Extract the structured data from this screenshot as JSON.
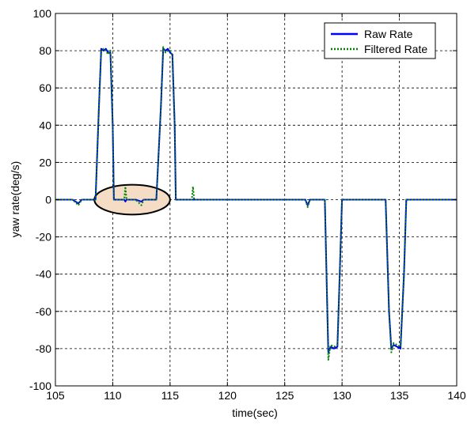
{
  "chart_data": {
    "type": "line",
    "title": "",
    "xlabel": "time(sec)",
    "ylabel": "yaw rate(deg/s)",
    "xlim": [
      105,
      140
    ],
    "ylim": [
      -100,
      100
    ],
    "xticks": [
      105,
      110,
      115,
      120,
      125,
      130,
      135,
      140
    ],
    "yticks": [
      -100,
      -80,
      -60,
      -40,
      -20,
      0,
      20,
      40,
      60,
      80,
      100
    ],
    "grid": true,
    "legend_position": "top-right",
    "series": [
      {
        "name": "Raw Rate",
        "color": "#0000ff",
        "style": "solid",
        "points": [
          [
            105,
            0
          ],
          [
            106.5,
            0
          ],
          [
            107,
            -2
          ],
          [
            107.3,
            0
          ],
          [
            108.5,
            0
          ],
          [
            108.8,
            50
          ],
          [
            109.0,
            81
          ],
          [
            109.2,
            80
          ],
          [
            109.4,
            81
          ],
          [
            109.6,
            79
          ],
          [
            109.8,
            79
          ],
          [
            110.0,
            40
          ],
          [
            110.1,
            0
          ],
          [
            111.0,
            0
          ],
          [
            111.1,
            -1
          ],
          [
            111.2,
            0
          ],
          [
            112.0,
            0
          ],
          [
            112.5,
            -1
          ],
          [
            112.7,
            0
          ],
          [
            113.8,
            0
          ],
          [
            114.2,
            50
          ],
          [
            114.4,
            81
          ],
          [
            114.6,
            80
          ],
          [
            114.8,
            81
          ],
          [
            115.0,
            79
          ],
          [
            115.2,
            78
          ],
          [
            115.4,
            40
          ],
          [
            115.5,
            0
          ],
          [
            117.0,
            0
          ],
          [
            120,
            0
          ],
          [
            126.8,
            0
          ],
          [
            127.0,
            -3
          ],
          [
            127.2,
            0
          ],
          [
            128.5,
            0
          ],
          [
            128.7,
            -55
          ],
          [
            128.8,
            -82
          ],
          [
            129.0,
            -79
          ],
          [
            129.3,
            -80
          ],
          [
            129.6,
            -79
          ],
          [
            129.8,
            -40
          ],
          [
            130.0,
            0
          ],
          [
            130.5,
            0
          ],
          [
            133.8,
            0
          ],
          [
            134.1,
            -60
          ],
          [
            134.3,
            -80
          ],
          [
            134.5,
            -78
          ],
          [
            134.8,
            -79
          ],
          [
            135.1,
            -80
          ],
          [
            135.4,
            -40
          ],
          [
            135.6,
            0
          ],
          [
            140,
            0
          ]
        ]
      },
      {
        "name": "Filtered Rate",
        "color": "#008000",
        "style": "dotted",
        "points": [
          [
            105,
            0
          ],
          [
            106.5,
            0
          ],
          [
            107,
            -3
          ],
          [
            107.3,
            0
          ],
          [
            108.5,
            0
          ],
          [
            108.8,
            50
          ],
          [
            109.0,
            80
          ],
          [
            109.2,
            81
          ],
          [
            109.4,
            80
          ],
          [
            109.6,
            78
          ],
          [
            109.8,
            80
          ],
          [
            110.0,
            40
          ],
          [
            110.1,
            0
          ],
          [
            111.0,
            0
          ],
          [
            111.1,
            7
          ],
          [
            111.2,
            0
          ],
          [
            112.0,
            0
          ],
          [
            112.5,
            -3
          ],
          [
            112.7,
            0
          ],
          [
            113.8,
            0
          ],
          [
            114.2,
            50
          ],
          [
            114.4,
            82
          ],
          [
            114.6,
            79
          ],
          [
            114.8,
            80
          ],
          [
            115.0,
            80
          ],
          [
            115.2,
            77
          ],
          [
            115.4,
            40
          ],
          [
            115.5,
            0
          ],
          [
            116.9,
            0
          ],
          [
            117.0,
            7
          ],
          [
            117.1,
            0
          ],
          [
            120,
            0
          ],
          [
            126.8,
            0
          ],
          [
            127.0,
            -4
          ],
          [
            127.2,
            0
          ],
          [
            128.5,
            0
          ],
          [
            128.7,
            -55
          ],
          [
            128.8,
            -86
          ],
          [
            129.0,
            -78
          ],
          [
            129.3,
            -79
          ],
          [
            129.6,
            -78
          ],
          [
            129.8,
            -40
          ],
          [
            130.0,
            0
          ],
          [
            130.5,
            0
          ],
          [
            133.8,
            0
          ],
          [
            134.1,
            -60
          ],
          [
            134.3,
            -82
          ],
          [
            134.5,
            -77
          ],
          [
            134.8,
            -78
          ],
          [
            135.1,
            -79
          ],
          [
            135.4,
            -40
          ],
          [
            135.6,
            0
          ],
          [
            140,
            0
          ]
        ]
      }
    ],
    "annotation": {
      "shape": "ellipse",
      "center": [
        111.7,
        0
      ],
      "span_x": [
        108.4,
        115.0
      ],
      "span_y": [
        -8,
        8
      ],
      "stroke": "#000000",
      "fill": "#f5dcc4"
    }
  }
}
